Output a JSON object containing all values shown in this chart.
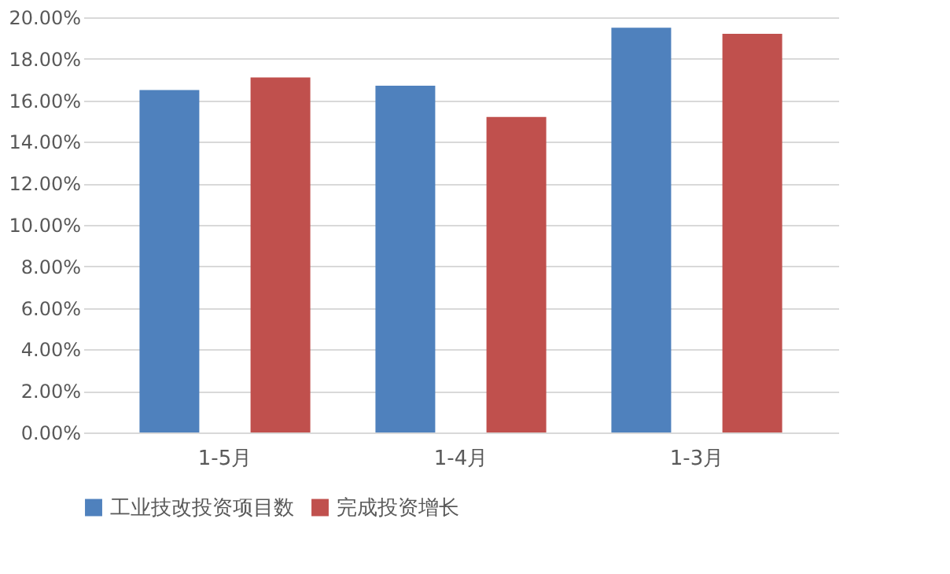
{
  "chart_data": {
    "type": "bar",
    "categories": [
      "1-5月",
      "1-4月",
      "1-3月"
    ],
    "series": [
      {
        "name": "工业技改投资项目数",
        "color": "#4f81bd",
        "values": [
          16.5,
          16.7,
          19.5
        ]
      },
      {
        "name": "完成投资增长",
        "color": "#c0504d",
        "values": [
          17.1,
          15.2,
          19.2
        ]
      }
    ],
    "ylim": [
      0,
      20
    ],
    "yticks": [
      {
        "value": 0,
        "label": "0.00%"
      },
      {
        "value": 2,
        "label": "2.00%"
      },
      {
        "value": 4,
        "label": "4.00%"
      },
      {
        "value": 6,
        "label": "6.00%"
      },
      {
        "value": 8,
        "label": "8.00%"
      },
      {
        "value": 10,
        "label": "10.00%"
      },
      {
        "value": 12,
        "label": "12.00%"
      },
      {
        "value": 14,
        "label": "14.00%"
      },
      {
        "value": 16,
        "label": "16.00%"
      },
      {
        "value": 18,
        "label": "18.00%"
      },
      {
        "value": 20,
        "label": "20.00%"
      }
    ],
    "grid": "y",
    "legend": "bottom"
  }
}
